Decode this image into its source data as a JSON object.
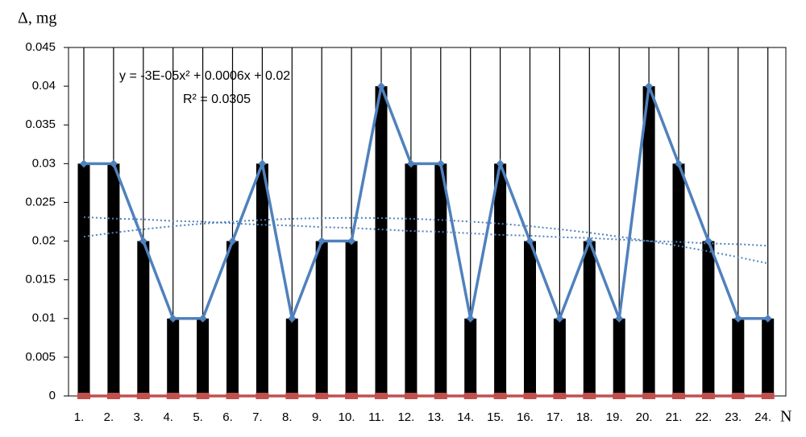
{
  "chart_data": {
    "type": "bar",
    "y_label": "Δ, mg",
    "x_label": "N",
    "annotation": [
      "y = -3E-05x² + 0.0006x + 0.02",
      "R² = 0.0305"
    ],
    "categories": [
      "1.",
      "2.",
      "3.",
      "4.",
      "5.",
      "6.",
      "7.",
      "8.",
      "9.",
      "10.",
      "11.",
      "12.",
      "13.",
      "14.",
      "15.",
      "16.",
      "17.",
      "18.",
      "19.",
      "20.",
      "21.",
      "22.",
      "23.",
      "24."
    ],
    "series": [
      {
        "type": "bar",
        "color": "#000000",
        "values": [
          0.03,
          0.03,
          0.02,
          0.01,
          0.01,
          0.02,
          0.03,
          0.01,
          0.02,
          0.02,
          0.04,
          0.03,
          0.03,
          0.01,
          0.03,
          0.02,
          0.01,
          0.02,
          0.01,
          0.04,
          0.03,
          0.02,
          0.01,
          0.01
        ]
      },
      {
        "type": "line",
        "color": "#4f81bd",
        "marker": "diamond",
        "values": [
          0.03,
          0.03,
          0.02,
          0.01,
          0.01,
          0.02,
          0.03,
          0.01,
          0.02,
          0.02,
          0.04,
          0.03,
          0.03,
          0.01,
          0.03,
          0.02,
          0.01,
          0.02,
          0.01,
          0.04,
          0.03,
          0.02,
          0.01,
          0.01
        ]
      },
      {
        "type": "line",
        "color": "#c0504d",
        "marker": "square",
        "values": [
          0,
          0,
          0,
          0,
          0,
          0,
          0,
          0,
          0,
          0,
          0,
          0,
          0,
          0,
          0,
          0,
          0,
          0,
          0,
          0,
          0,
          0,
          0,
          0
        ]
      },
      {
        "type": "trend",
        "color": "#4f81bd",
        "values": [
          0.02057,
          0.02108,
          0.02153,
          0.02192,
          0.02225,
          0.02252,
          0.02273,
          0.02288,
          0.02297,
          0.023,
          0.02297,
          0.02288,
          0.02273,
          0.02252,
          0.02225,
          0.02192,
          0.02153,
          0.02108,
          0.02057,
          0.02,
          0.01937,
          0.01868,
          0.01793,
          0.01712
        ]
      },
      {
        "type": "trend",
        "color": "#4f81bd",
        "values": [
          0.0231,
          0.0229,
          0.0228,
          0.0226,
          0.0225,
          0.0223,
          0.0221,
          0.022,
          0.0218,
          0.0217,
          0.0215,
          0.0213,
          0.0212,
          0.021,
          0.0208,
          0.0207,
          0.0205,
          0.0204,
          0.0202,
          0.02,
          0.0199,
          0.0197,
          0.0196,
          0.0194
        ]
      }
    ],
    "ylim": [
      0,
      0.045
    ],
    "yticks": [
      0,
      0.005,
      0.01,
      0.015,
      0.02,
      0.025,
      0.03,
      0.035,
      0.04,
      0.045
    ],
    "grid": true
  }
}
